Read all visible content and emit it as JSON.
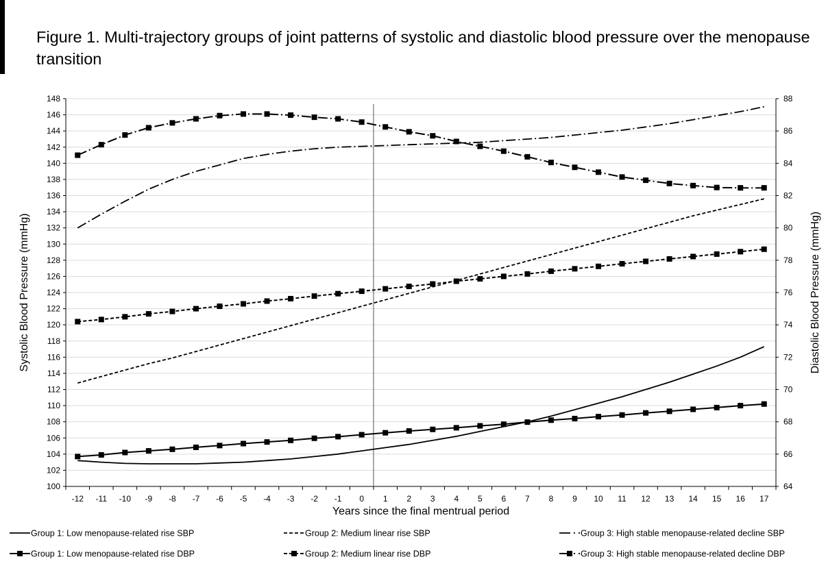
{
  "figure": {
    "title": "Figure 1. Multi-trajectory groups of joint patterns of systolic and diastolic blood pressure over the menopause transition"
  },
  "chart_data": {
    "type": "line",
    "title": "Figure 1. Multi-trajectory groups of joint patterns of systolic and diastolic blood pressure over the menopause transition",
    "xlabel": "Years since the final mentrual period",
    "ylabel_left": "Systolic Blood Pressure (mmHg)",
    "ylabel_right": "Diastolic Blood Pressure (mmHg)",
    "x": [
      -12,
      -11,
      -10,
      -9,
      -8,
      -7,
      -6,
      -5,
      -4,
      -3,
      -2,
      -1,
      0,
      1,
      2,
      3,
      4,
      5,
      6,
      7,
      8,
      9,
      10,
      11,
      12,
      13,
      14,
      15,
      16,
      17
    ],
    "ylim_left": [
      100,
      148
    ],
    "yticks_left": [
      100,
      102,
      104,
      106,
      108,
      110,
      112,
      114,
      116,
      118,
      120,
      122,
      124,
      126,
      128,
      130,
      132,
      134,
      136,
      138,
      140,
      142,
      144,
      146,
      148
    ],
    "ylim_right": [
      64,
      88
    ],
    "yticks_right": [
      64,
      66,
      68,
      70,
      72,
      74,
      76,
      78,
      80,
      82,
      84,
      86,
      88
    ],
    "reference_line_x": 0.5,
    "grid": true,
    "legend_position": "bottom",
    "series": [
      {
        "name": "Group 1: Low menopause-related rise  SBP",
        "axis": "left",
        "style": "solid",
        "marker": false,
        "values": [
          103.2,
          103.0,
          102.85,
          102.8,
          102.8,
          102.8,
          102.9,
          103.0,
          103.2,
          103.4,
          103.7,
          104.0,
          104.4,
          104.8,
          105.2,
          105.7,
          106.2,
          106.8,
          107.4,
          108.0,
          108.7,
          109.5,
          110.3,
          111.1,
          112.0,
          112.9,
          113.9,
          114.9,
          116.0,
          117.3
        ]
      },
      {
        "name": "Group 2: Medium linear rise SBP",
        "axis": "left",
        "style": "dashed",
        "marker": false,
        "values": [
          112.8,
          113.6,
          114.4,
          115.2,
          115.9,
          116.7,
          117.5,
          118.3,
          119.1,
          119.9,
          120.7,
          121.5,
          122.3,
          123.1,
          123.9,
          124.7,
          125.5,
          126.3,
          127.1,
          127.9,
          128.7,
          129.5,
          130.3,
          131.1,
          131.9,
          132.7,
          133.5,
          134.2,
          134.9,
          135.6
        ]
      },
      {
        "name": "Group 3: High stable menopause-related decline SBP",
        "axis": "left",
        "style": "dashdot",
        "marker": false,
        "values": [
          132.0,
          133.7,
          135.3,
          136.8,
          138.0,
          139.0,
          139.8,
          140.6,
          141.1,
          141.5,
          141.8,
          142.0,
          142.1,
          142.2,
          142.3,
          142.4,
          142.5,
          142.6,
          142.8,
          143.0,
          143.2,
          143.5,
          143.8,
          144.1,
          144.5,
          144.9,
          145.4,
          145.9,
          146.4,
          147.0
        ]
      },
      {
        "name": "Group 1: Low menopause-related rise DBP",
        "axis": "right",
        "style": "solid",
        "marker": true,
        "values": [
          65.85,
          65.95,
          66.1,
          66.2,
          66.3,
          66.42,
          66.53,
          66.65,
          66.75,
          66.85,
          66.98,
          67.08,
          67.2,
          67.32,
          67.43,
          67.53,
          67.63,
          67.75,
          67.85,
          67.98,
          68.1,
          68.2,
          68.32,
          68.42,
          68.55,
          68.65,
          68.77,
          68.88,
          69.0,
          69.1
        ]
      },
      {
        "name": "Group 2: Medium linear rise DBP",
        "axis": "right",
        "style": "dashed",
        "marker": true,
        "values": [
          74.2,
          74.33,
          74.5,
          74.68,
          74.83,
          75.0,
          75.15,
          75.3,
          75.47,
          75.62,
          75.78,
          75.93,
          76.08,
          76.23,
          76.38,
          76.53,
          76.7,
          76.85,
          77.0,
          77.15,
          77.32,
          77.47,
          77.62,
          77.78,
          77.93,
          78.08,
          78.23,
          78.38,
          78.53,
          78.68
        ]
      },
      {
        "name": "Group 3: High stable menopause-related decline DBP",
        "axis": "right",
        "style": "dashdot",
        "marker": true,
        "values": [
          84.5,
          85.15,
          85.75,
          86.2,
          86.5,
          86.75,
          86.95,
          87.05,
          87.05,
          86.98,
          86.85,
          86.75,
          86.55,
          86.25,
          85.95,
          85.7,
          85.35,
          85.05,
          84.75,
          84.4,
          84.05,
          83.75,
          83.45,
          83.15,
          82.95,
          82.75,
          82.62,
          82.5,
          82.48,
          82.48
        ]
      }
    ]
  }
}
